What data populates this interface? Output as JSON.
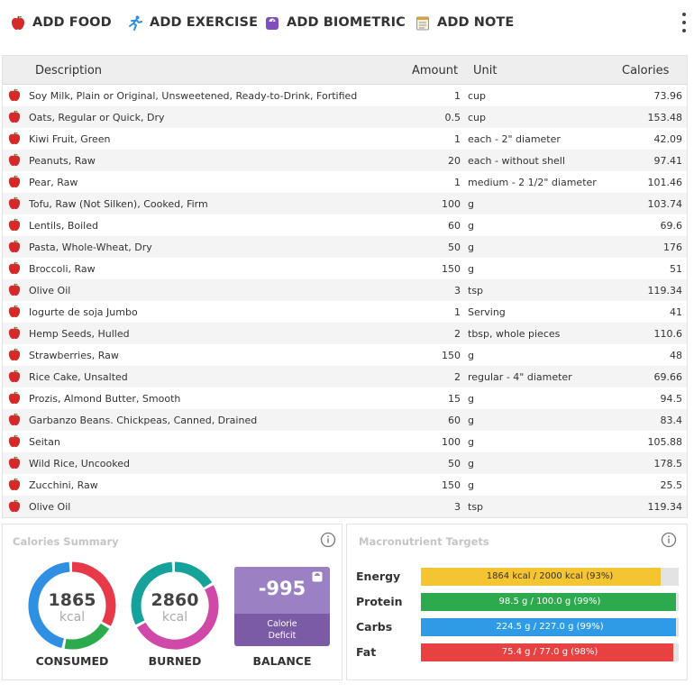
{
  "toolbar": {
    "add_food": "ADD FOOD",
    "add_exercise": "ADD EXERCISE",
    "add_biometric": "ADD BIOMETRIC",
    "add_note": "ADD NOTE"
  },
  "table": {
    "headers": {
      "description": "Description",
      "amount": "Amount",
      "unit": "Unit",
      "calories": "Calories"
    },
    "rows": [
      {
        "description": "Soy Milk, Plain or Original, Unsweetened, Ready-to-Drink, Fortified",
        "amount": "1",
        "unit": "cup",
        "calories": "73.96"
      },
      {
        "description": "Oats, Regular or Quick, Dry",
        "amount": "0.5",
        "unit": "cup",
        "calories": "153.48"
      },
      {
        "description": "Kiwi Fruit, Green",
        "amount": "1",
        "unit": "each - 2\" diameter",
        "calories": "42.09"
      },
      {
        "description": "Peanuts, Raw",
        "amount": "20",
        "unit": "each - without shell",
        "calories": "97.41"
      },
      {
        "description": "Pear, Raw",
        "amount": "1",
        "unit": "medium - 2 1/2\" diameter",
        "calories": "101.46"
      },
      {
        "description": "Tofu, Raw (Not Silken), Cooked, Firm",
        "amount": "100",
        "unit": "g",
        "calories": "103.74"
      },
      {
        "description": "Lentils, Boiled",
        "amount": "60",
        "unit": "g",
        "calories": "69.6"
      },
      {
        "description": "Pasta, Whole-Wheat, Dry",
        "amount": "50",
        "unit": "g",
        "calories": "176"
      },
      {
        "description": "Broccoli, Raw",
        "amount": "150",
        "unit": "g",
        "calories": "51"
      },
      {
        "description": "Olive Oil",
        "amount": "3",
        "unit": "tsp",
        "calories": "119.34"
      },
      {
        "description": "Iogurte de soja Jumbo",
        "amount": "1",
        "unit": "Serving",
        "calories": "41"
      },
      {
        "description": "Hemp Seeds, Hulled",
        "amount": "2",
        "unit": "tbsp, whole pieces",
        "calories": "110.6"
      },
      {
        "description": "Strawberries, Raw",
        "amount": "150",
        "unit": "g",
        "calories": "48"
      },
      {
        "description": "Rice Cake, Unsalted",
        "amount": "2",
        "unit": "regular - 4\" diameter",
        "calories": "69.66"
      },
      {
        "description": "Prozis, Almond Butter, Smooth",
        "amount": "15",
        "unit": "g",
        "calories": "94.5"
      },
      {
        "description": "Garbanzo Beans. Chickpeas, Canned, Drained",
        "amount": "60",
        "unit": "g",
        "calories": "83.4"
      },
      {
        "description": "Seitan",
        "amount": "100",
        "unit": "g",
        "calories": "105.88"
      },
      {
        "description": "Wild Rice, Uncooked",
        "amount": "50",
        "unit": "g",
        "calories": "178.5"
      },
      {
        "description": "Zucchini, Raw",
        "amount": "150",
        "unit": "g",
        "calories": "25.5"
      },
      {
        "description": "Olive Oil",
        "amount": "3",
        "unit": "tsp",
        "calories": "119.34"
      }
    ]
  },
  "calories_summary": {
    "title": "Calories Summary",
    "consumed": {
      "value": "1865",
      "unit": "kcal",
      "label": "CONSUMED"
    },
    "burned": {
      "value": "2860",
      "unit": "kcal",
      "label": "BURNED"
    },
    "balance": {
      "value": "-995",
      "sub_line1": "Calorie",
      "sub_line2": "Deficit",
      "label": "BALANCE"
    }
  },
  "macros": {
    "title": "Macronutrient Targets",
    "items": [
      {
        "name": "Energy",
        "text": "1864 kcal / 2000 kcal (93%)",
        "fraction": 0.93,
        "color": "#f5c431",
        "light_text": false
      },
      {
        "name": "Protein",
        "text": "98.5 g / 100.0 g (99%)",
        "fraction": 0.99,
        "color": "#2eaa4e",
        "light_text": true
      },
      {
        "name": "Carbs",
        "text": "224.5 g / 227.0 g (99%)",
        "fraction": 0.99,
        "color": "#2f9be6",
        "light_text": true
      },
      {
        "name": "Fat",
        "text": "75.4 g / 77.0 g (98%)",
        "fraction": 0.98,
        "color": "#e84141",
        "light_text": true
      }
    ]
  },
  "colors": {
    "ring_red": "#e8394a",
    "ring_green": "#2eaa4e",
    "ring_blue": "#2f8fe3",
    "ring_teal": "#16a29a",
    "ring_pink": "#d048a8",
    "balance_purple": "#9c80c4"
  }
}
